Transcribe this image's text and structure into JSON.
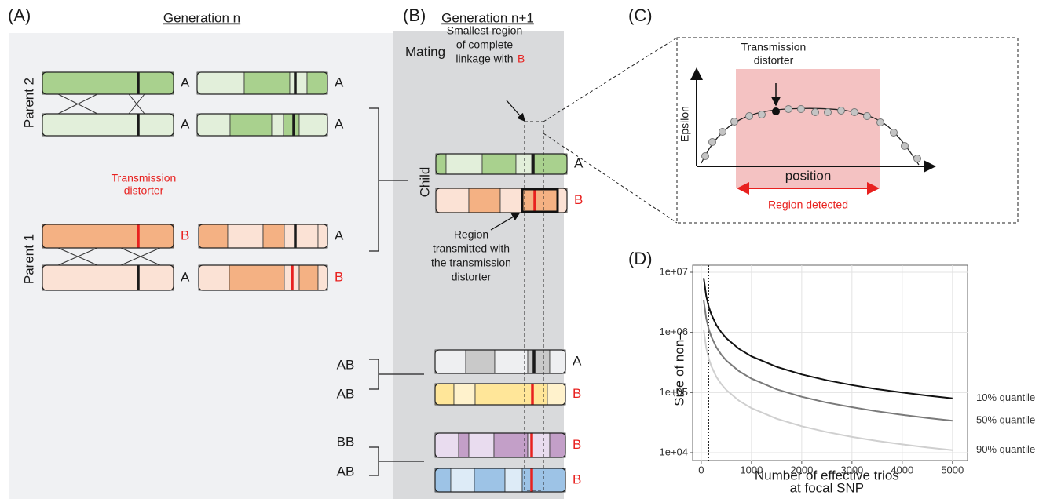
{
  "panels": {
    "A": {
      "label": "(A)",
      "heading": "Generation n",
      "parent_2": "Parent 2",
      "parent_1": "Parent 1",
      "transmission_distorter": [
        "Transmission",
        "distorter"
      ],
      "chromosome_labels": [
        "A",
        "A",
        "A",
        "A",
        "B",
        "A",
        "A",
        "B"
      ]
    },
    "B": {
      "label": "(B)",
      "heading": "Generation n+1",
      "mating": "Mating",
      "smallest_region": [
        "Smallest region",
        "of complete",
        "linkage with"
      ],
      "smallest_region_allele": "B",
      "child": "Child",
      "child_labels": [
        "A",
        "B"
      ],
      "region_transmitted": [
        "Region",
        "transmitted with",
        "the transmission",
        "distorter"
      ],
      "genotypes": [
        "AB",
        "AB",
        "BB",
        "AB"
      ],
      "offspring_labels": [
        "A",
        "B",
        "B",
        "B"
      ]
    },
    "C": {
      "label": "(C)",
      "transmission_distorter": [
        "Transmission",
        "distorter"
      ],
      "y_axis": "Epsilon",
      "x_axis": "position",
      "region_detected": "Region detected"
    },
    "D": {
      "label": "(D)"
    }
  },
  "chart_data": {
    "type": "line",
    "ylabel": "Size of non–",
    "xlabel": [
      "Number of effective trios",
      "at focal SNP"
    ],
    "x": [
      50,
      100,
      150,
      200,
      300,
      400,
      500,
      750,
      1000,
      1500,
      2000,
      2500,
      3000,
      3500,
      4000,
      4500,
      5000
    ],
    "series": [
      {
        "name": "10% quantile",
        "color": "#111111",
        "values": [
          8000000,
          4000000,
          2670000,
          2000000,
          1330000,
          1000000,
          800000,
          533000,
          400000,
          267000,
          200000,
          160000,
          133000,
          114000,
          100000,
          89000,
          80000
        ]
      },
      {
        "name": "50% quantile",
        "color": "#7a7a7a",
        "values": [
          3400000,
          1700000,
          1130000,
          850000,
          567000,
          425000,
          340000,
          227000,
          170000,
          113000,
          85000,
          68000,
          57000,
          48600,
          42500,
          37800,
          34000
        ]
      },
      {
        "name": "90% quantile",
        "color": "#cfcfcf",
        "values": [
          1100000,
          550000,
          367000,
          275000,
          183000,
          137500,
          110000,
          73300,
          55000,
          36700,
          27500,
          22000,
          18300,
          15700,
          13750,
          12200,
          11000
        ]
      }
    ],
    "xlim": [
      -170,
      5300
    ],
    "xticks": [
      0,
      1000,
      2000,
      3000,
      4000,
      5000
    ],
    "ylim": [
      7400,
      13100000
    ],
    "log_y": true,
    "yticks": [
      {
        "value": 10000,
        "label": "1e+04"
      },
      {
        "value": 100000,
        "label": "1e+05"
      },
      {
        "value": 1000000,
        "label": "1e+06"
      },
      {
        "value": 10000000,
        "label": "1e+07"
      }
    ],
    "reference_x": 150,
    "grid": true
  }
}
